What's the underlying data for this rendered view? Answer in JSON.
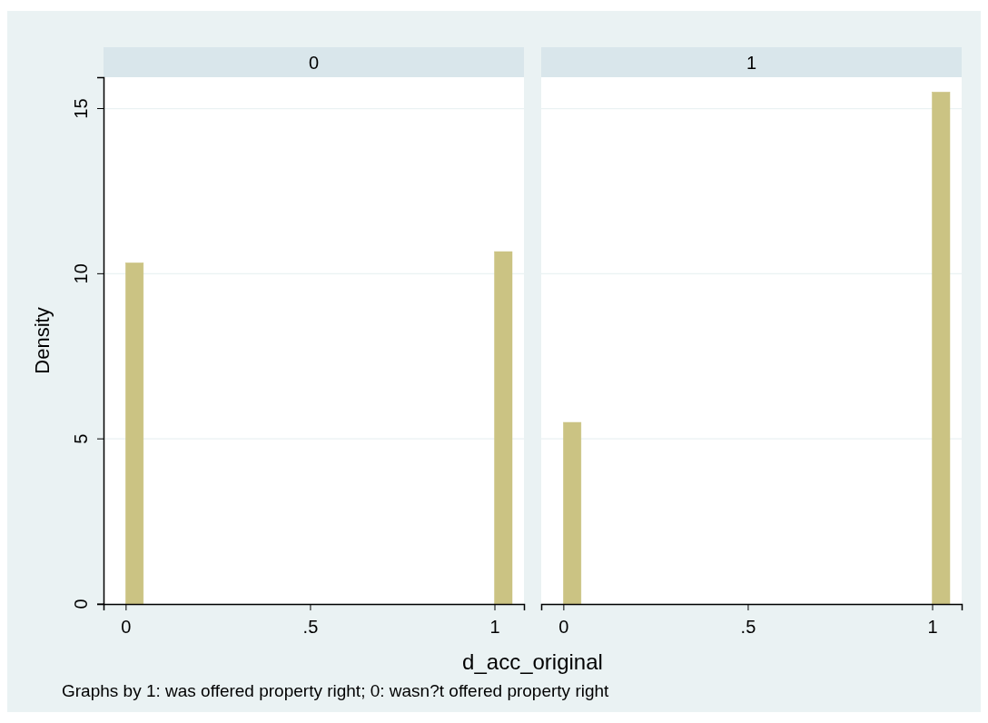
{
  "chart_data": [
    {
      "type": "histogram",
      "title": "0",
      "ylabel": "Density",
      "xlabel": "d_acc_original",
      "annotations": [
        "Graphs by 1: was offered property right; 0: wasn?t offered property right"
      ],
      "bins": [
        0,
        0.048,
        1,
        1.048
      ],
      "values": [
        10.33,
        0,
        10.67
      ],
      "color": "#cbc383",
      "xlim": [
        -0.06,
        1.08
      ],
      "xticks": [
        {
          "value": 0,
          "label": "0"
        },
        {
          "value": 0.5,
          "label": ".5"
        },
        {
          "value": 1,
          "label": "1"
        }
      ],
      "ylim": [
        0,
        15.95
      ],
      "yticks": [
        0,
        5,
        10,
        15
      ],
      "grid": "y"
    },
    {
      "type": "histogram",
      "title": "1",
      "bins": [
        0,
        0.048,
        1,
        1.048
      ],
      "values": [
        5.5,
        0,
        15.5
      ],
      "color": "#cbc383",
      "xlim": [
        -0.06,
        1.08
      ],
      "xticks": [
        {
          "value": 0,
          "label": "0"
        },
        {
          "value": 0.5,
          "label": ".5"
        },
        {
          "value": 1,
          "label": "1"
        }
      ],
      "ylim": [
        0,
        15.95
      ],
      "yticks": [
        0,
        5,
        10,
        15
      ],
      "grid": "y",
      "tick_labels": "x"
    }
  ]
}
